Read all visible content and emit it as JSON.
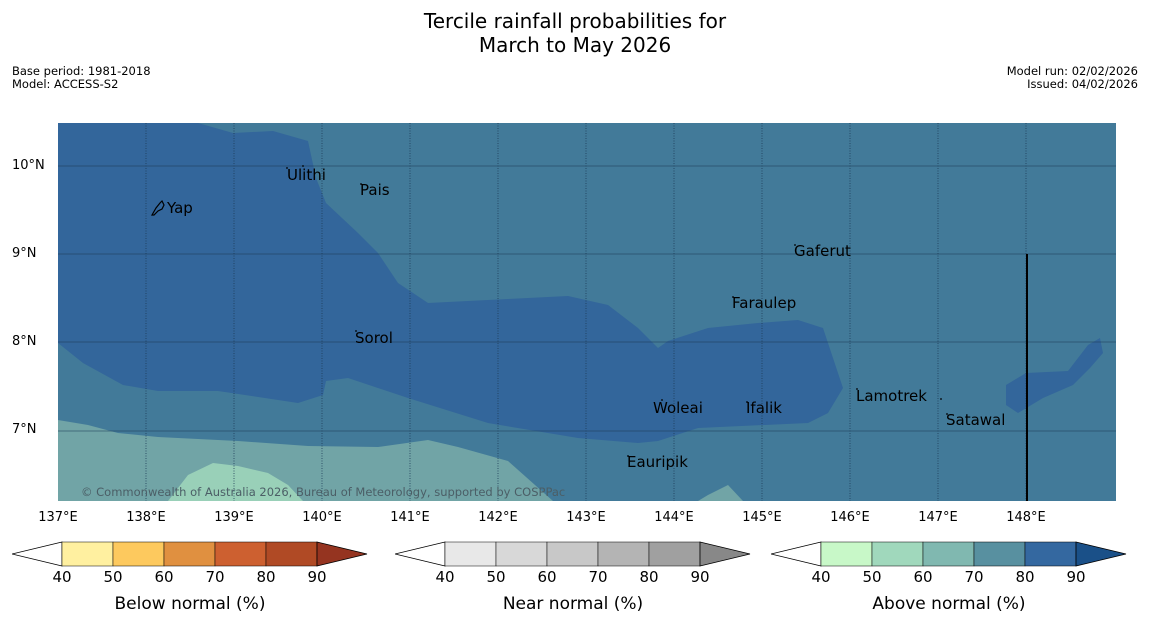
{
  "title": {
    "line1": "Tercile rainfall probabilities for",
    "line2": "March to May 2026"
  },
  "meta_left": {
    "base_period": "Base period: 1981-2018",
    "model": "Model: ACCESS-S2"
  },
  "meta_right": {
    "model_run": "Model run: 02/02/2026",
    "issued": "Issued: 04/02/2026"
  },
  "copyright": "© Commonwealth of Australia 2026, Bureau of Meteorology, supported by COSPPac",
  "lat_labels": [
    "10°N",
    "9°N",
    "8°N",
    "7°N"
  ],
  "lon_labels": [
    "137°E",
    "138°E",
    "139°E",
    "140°E",
    "141°E",
    "142°E",
    "143°E",
    "144°E",
    "145°E",
    "146°E",
    "147°E",
    "148°E"
  ],
  "places": [
    "Ulithi",
    "Pais",
    "Yap",
    "Gaferut",
    "Faraulep",
    "Sorol",
    "Lamotrek",
    "Woleai",
    "Ifalik",
    "Satawal",
    "Eauripik"
  ],
  "colorbars": [
    {
      "title": "Below normal (%)",
      "ticks": [
        "40",
        "50",
        "60",
        "70",
        "80",
        "90"
      ],
      "colors": [
        "#fff0a0",
        "#fdc95e",
        "#e09040",
        "#cd6030",
        "#b04a25",
        "#953420"
      ]
    },
    {
      "title": "Near normal (%)",
      "ticks": [
        "40",
        "50",
        "60",
        "70",
        "80",
        "90"
      ],
      "colors": [
        "#e8e8e8",
        "#d8d8d8",
        "#c8c8c8",
        "#b4b4b4",
        "#a0a0a0",
        "#888888"
      ]
    },
    {
      "title": "Above normal (%)",
      "ticks": [
        "40",
        "50",
        "60",
        "70",
        "80",
        "90"
      ],
      "colors": [
        "#c8f8c8",
        "#a0d8bc",
        "#80b8b0",
        "#5890a0",
        "#3468a0",
        "#1a5088"
      ]
    }
  ],
  "colors": {
    "above_70_80": "#427a99",
    "above_80_90": "#33669b",
    "above_60_70": "#71a4a6",
    "above_50_60": "#99d0b8"
  }
}
